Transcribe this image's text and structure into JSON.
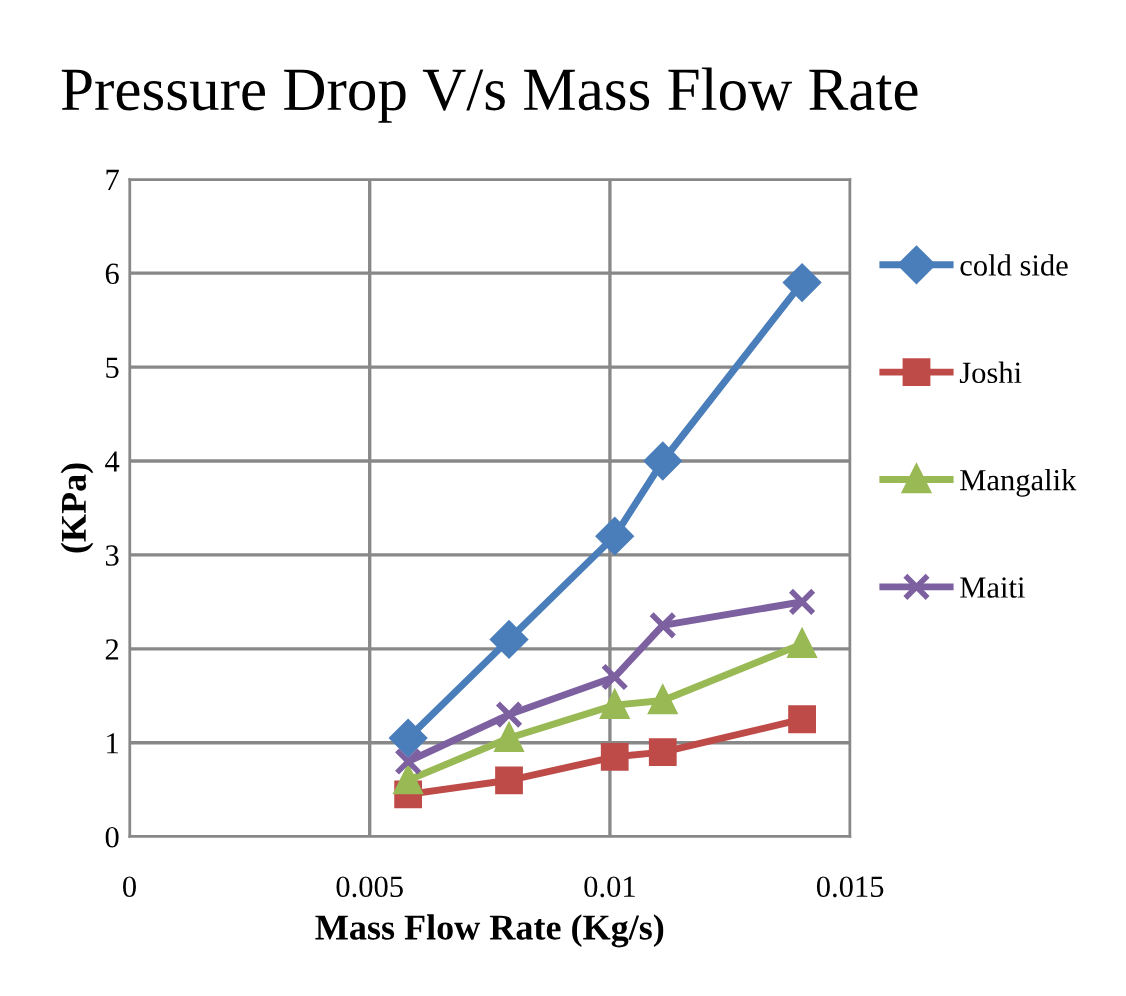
{
  "chart_data": {
    "type": "line",
    "title": "Pressure Drop V/s Mass Flow Rate",
    "xlabel": "Mass Flow Rate (Kg/s)",
    "ylabel": "(KPa)",
    "x": [
      0.0058,
      0.0079,
      0.0101,
      0.0111,
      0.014
    ],
    "series": [
      {
        "name": "cold side",
        "color": "#4a7ebb",
        "marker": "diamond",
        "values": [
          1.05,
          2.1,
          3.2,
          4.0,
          5.9
        ]
      },
      {
        "name": "Joshi",
        "color": "#be4b48",
        "marker": "square",
        "values": [
          0.45,
          0.6,
          0.85,
          0.9,
          1.25
        ]
      },
      {
        "name": "Mangalik",
        "color": "#98b954",
        "marker": "triangle",
        "values": [
          0.6,
          1.05,
          1.4,
          1.45,
          2.05
        ]
      },
      {
        "name": "Maiti",
        "color": "#7d60a0",
        "marker": "cross",
        "values": [
          0.8,
          1.3,
          1.7,
          2.25,
          2.5
        ]
      }
    ],
    "xlim": [
      0,
      0.015
    ],
    "xticks": [
      0,
      0.005,
      0.01,
      0.015
    ],
    "ylim": [
      0,
      7
    ],
    "yticks": [
      0,
      1,
      2,
      3,
      4,
      5,
      6,
      7
    ],
    "grid": true,
    "legend": "right"
  }
}
